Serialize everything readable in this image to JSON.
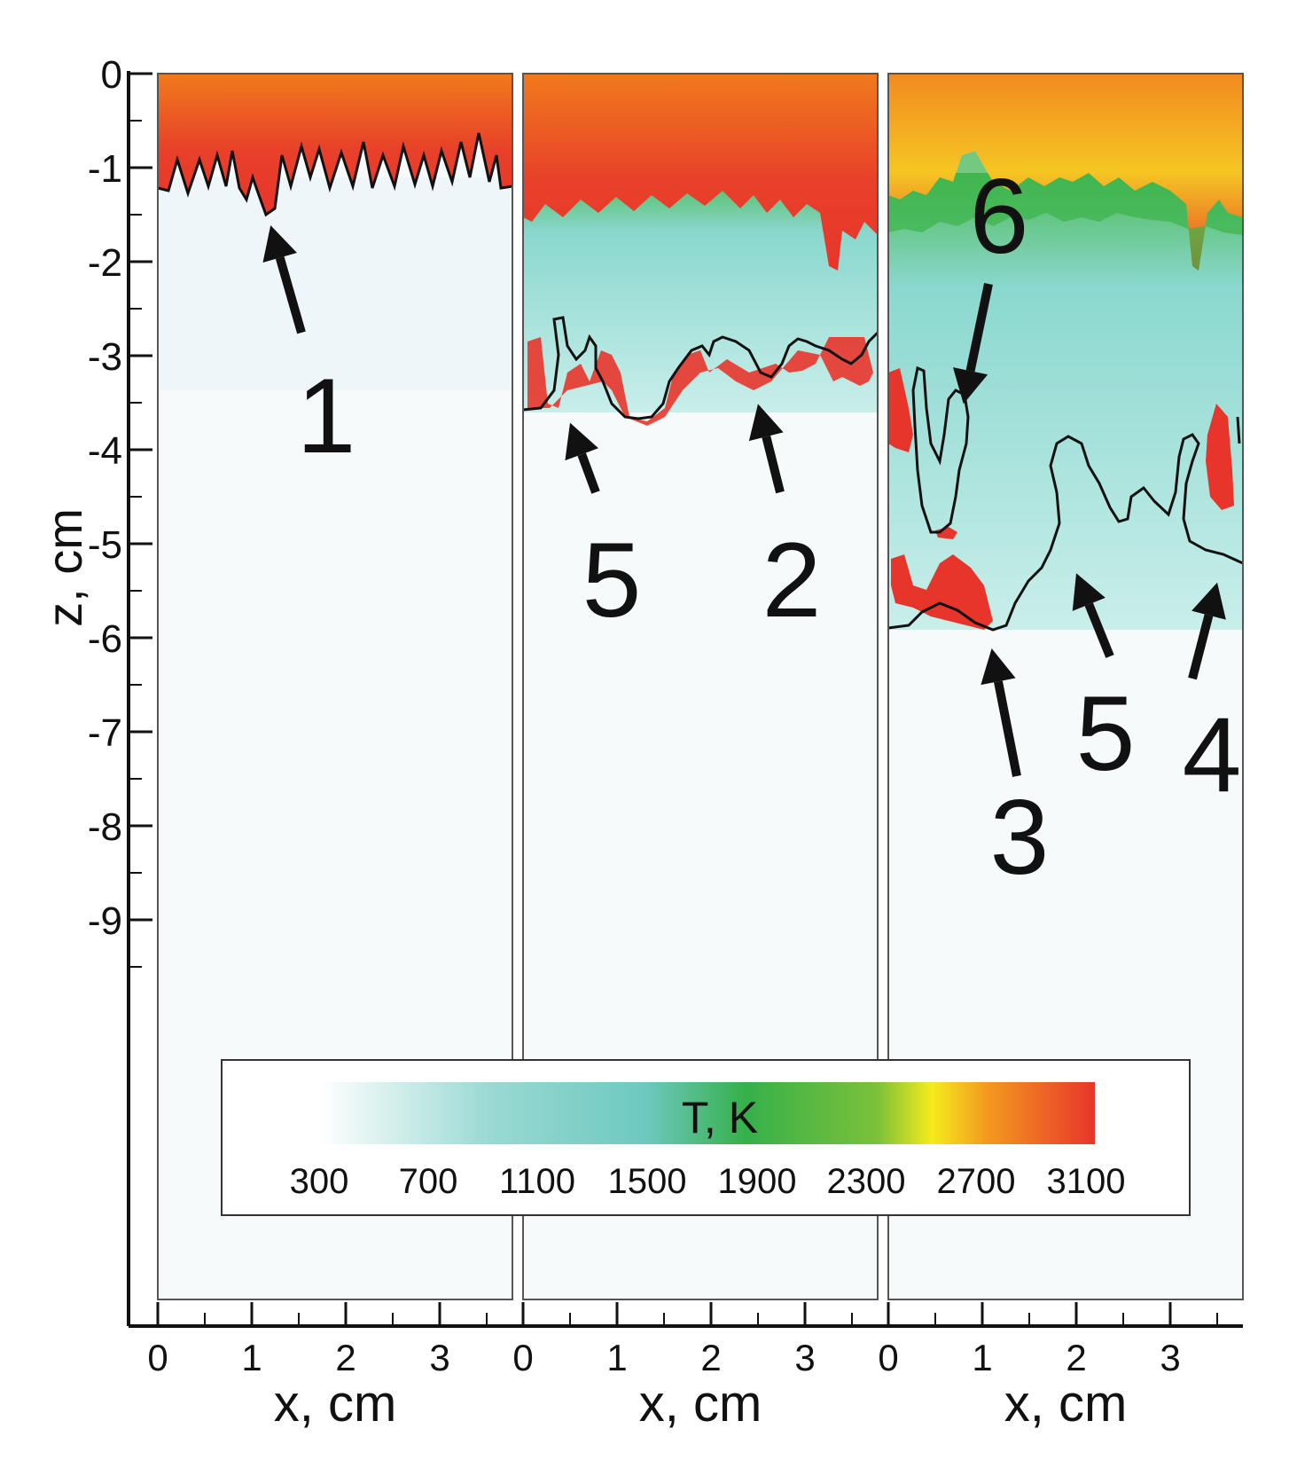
{
  "chart_data": {
    "type": "heatmap",
    "title": "",
    "ylabel": "z, cm",
    "y_ticks": [
      "0",
      "-1",
      "-2",
      "-3",
      "-4",
      "-5",
      "-6",
      "-7",
      "-8",
      "-9"
    ],
    "ylim": [
      -13.3,
      0
    ],
    "panels": [
      {
        "xlabel": "x, cm",
        "x_ticks": [
          "0",
          "1",
          "2",
          "3"
        ],
        "xlim": [
          0,
          3.8
        ],
        "front_depth_cm": 1.3,
        "front_contour_z": [
          -1.25,
          -0.8,
          -1.3,
          -0.9,
          -1.25,
          -0.7,
          -1.35,
          -0.8,
          -1.55,
          -0.5,
          -1.35,
          -0.8,
          -1.3,
          -0.75,
          -1.3,
          -0.9,
          -1.3,
          -0.7,
          -1.3
        ],
        "annotations": [
          {
            "label": "1",
            "x": 1.2,
            "z": -1.5
          }
        ]
      },
      {
        "xlabel": "x, cm",
        "x_ticks": [
          "0",
          "1",
          "2",
          "3"
        ],
        "xlim": [
          0,
          3.8
        ],
        "front_depth_cm": 3.7,
        "front_contour_z": [
          -3.6,
          -2.7,
          -3.4,
          -3.2,
          -3.7,
          -3.4,
          -3.6,
          -3.0,
          -3.3,
          -2.85,
          -3.3,
          -2.8,
          -3.2,
          -3.0,
          -3.25
        ],
        "annotations": [
          {
            "label": "5",
            "x": 0.5,
            "z": -3.6
          },
          {
            "label": "2",
            "x": 2.5,
            "z": -3.4
          }
        ]
      },
      {
        "xlabel": "x, cm",
        "x_ticks": [
          "0",
          "1",
          "2",
          "3"
        ],
        "xlim": [
          0,
          3.8
        ],
        "front_depth_cm": 5.9,
        "front_contour_z": [
          -5.9,
          -5.5,
          -5.9,
          -5.7,
          -6.0,
          -5.5,
          -5.2,
          -4.0,
          -5.0,
          -4.5,
          -5.2,
          -3.9,
          -5.2,
          -5.3
        ],
        "annotations": [
          {
            "label": "6",
            "x": 0.8,
            "z": -3.4
          },
          {
            "label": "3",
            "x": 1.1,
            "z": -6.0
          },
          {
            "label": "5",
            "x": 2.0,
            "z": -5.2
          },
          {
            "label": "4",
            "x": 3.5,
            "z": -5.3
          }
        ]
      }
    ],
    "colorbar": {
      "label": "T, K",
      "ticks": [
        "300",
        "700",
        "1100",
        "1500",
        "1900",
        "2300",
        "2700",
        "3100"
      ],
      "range": [
        300,
        3100
      ],
      "colors": [
        "#ffffff",
        "#7fd4cf",
        "#3cb44a",
        "#f2e41e",
        "#f07c1e",
        "#e8352b"
      ]
    }
  }
}
